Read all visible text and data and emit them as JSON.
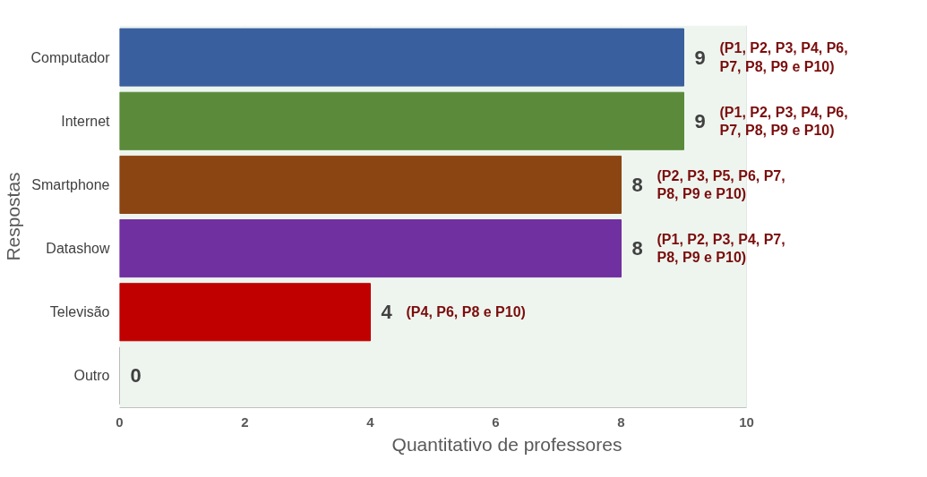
{
  "chart_data": {
    "type": "bar",
    "orientation": "horizontal",
    "xlabel": "Quantitativo de professores",
    "ylabel": "Respostas",
    "categories": [
      "Computador",
      "Internet",
      "Smartphone",
      "Datashow",
      "Televisão",
      "Outro"
    ],
    "values": [
      9,
      9,
      8,
      8,
      4,
      0
    ],
    "colors": [
      "#3a5f9e",
      "#5a8a3a",
      "#8b4513",
      "#7030a0",
      "#c00000",
      "#a6a6a6"
    ],
    "xlim": [
      0,
      10
    ],
    "xticks": [
      0,
      2,
      4,
      6,
      8,
      10
    ],
    "grid": "x",
    "data_labels": true,
    "annotations": [
      {
        "text": "(P1, P2, P3, P4, P6,\nP7, P8, P9 e P10)",
        "x": 9,
        "y": "Computador"
      },
      {
        "text": "(P1, P2, P3, P4, P6,\nP7, P8, P9 e P10)",
        "x": 9,
        "y": "Internet"
      },
      {
        "text": "(P2, P3, P5, P6, P7,\nP8, P9 e P10)",
        "x": 8,
        "y": "Smartphone"
      },
      {
        "text": "(P1, P2, P3, P4, P7,\nP8, P9 e P10)",
        "x": 8,
        "y": "Datashow"
      },
      {
        "text": "(P4, P6, P8 e P10)",
        "x": 4,
        "y": "Televisão"
      }
    ]
  }
}
